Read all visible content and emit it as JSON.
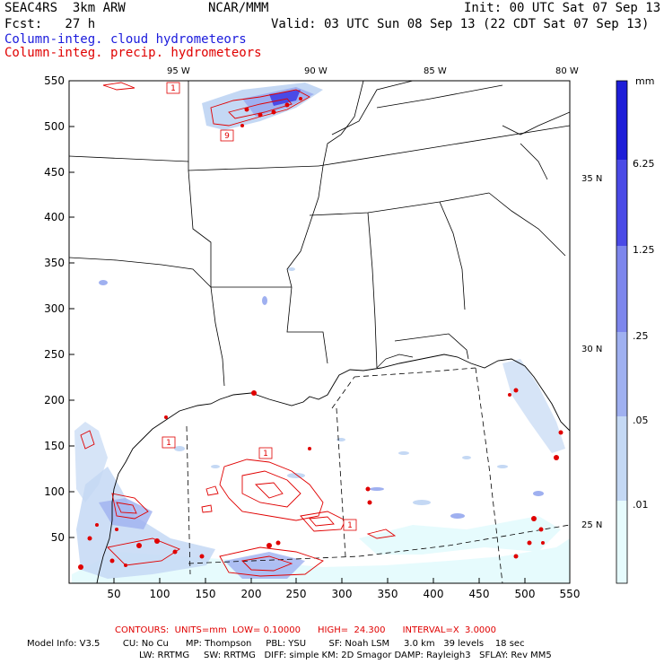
{
  "header": {
    "model": "SEAC4RS  3km ARW",
    "center": "NCAR/MMM",
    "init": "Init: 00 UTC Sat 07 Sep 13",
    "fcst": "Fcst:   27 h",
    "valid": "Valid: 03 UTC Sun 08 Sep 13 (22 CDT Sat 07 Sep 13)",
    "field_cloud": "Column-integ. cloud hydrometeors",
    "field_precip": "Column-integ. precip. hydrometeors"
  },
  "colors": {
    "cloud_text": "#1a1adc",
    "precip": "#e00000",
    "shade_levels": [
      "#e6fbfd",
      "#c4d8f4",
      "#9fb0f0",
      "#7d86ec",
      "#4a4ae6",
      "#1e1ed8"
    ]
  },
  "map": {
    "x_ticks": [
      "50",
      "100",
      "150",
      "200",
      "250",
      "300",
      "350",
      "400",
      "450",
      "500",
      "550"
    ],
    "y_ticks": [
      "50",
      "100",
      "150",
      "200",
      "250",
      "300",
      "350",
      "400",
      "450",
      "500",
      "550"
    ],
    "lon_labels": [
      "95 W",
      "90 W",
      "85 W",
      "80 W"
    ],
    "lat_labels": [
      "35 N",
      "30 N",
      "25 N"
    ],
    "contour_labels": [
      "1",
      "9",
      "1",
      "1",
      "1"
    ]
  },
  "colorbar": {
    "unit": "mm",
    "levels": [
      "6.25",
      "1.25",
      ".25",
      ".05",
      ".01"
    ]
  },
  "footer": {
    "contours": "CONTOURS:  UNITS=mm  LOW= 0.10000      HIGH=  24.300      INTERVAL=X  3.0000",
    "line1": "Model Info: V3.5        CU: No Cu      MP: Thompson     PBL: YSU        SF: Noah LSM     3.0 km   39 levels    18 sec",
    "line2": "LW: RRTMG     SW: RRTMG   DIFF: simple KM: 2D Smagor DAMP: Rayleigh3   SFLAY: Rev MM5"
  }
}
